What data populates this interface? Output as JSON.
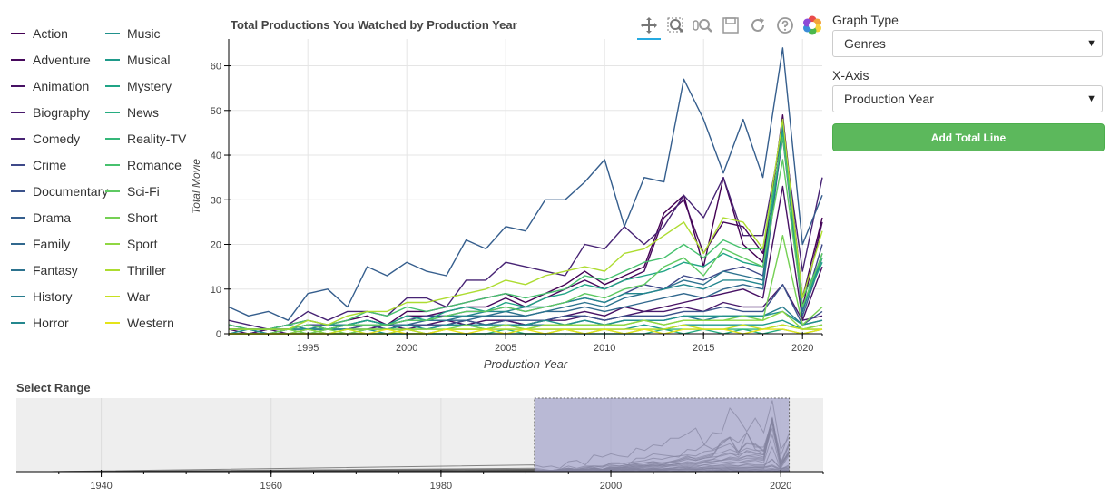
{
  "legend": [
    "Action",
    "Adventure",
    "Animation",
    "Biography",
    "Comedy",
    "Crime",
    "Documentary",
    "Drama",
    "Family",
    "Fantasy",
    "History",
    "Horror",
    "Music",
    "Musical",
    "Mystery",
    "News",
    "Reality-TV",
    "Romance",
    "Sci-Fi",
    "Short",
    "Sport",
    "Thriller",
    "War",
    "Western"
  ],
  "colors": {
    "Action": "#440154",
    "Adventure": "#46085c",
    "Animation": "#471164",
    "Biography": "#481a6c",
    "Comedy": "#472374",
    "Crime": "#3e4989",
    "Documentary": "#3b528b",
    "Drama": "#355e8d",
    "Family": "#31688e",
    "Fantasy": "#2c728e",
    "History": "#287c8e",
    "Horror": "#24878e",
    "Music": "#21918c",
    "Musical": "#1f9a8a",
    "Mystery": "#20a486",
    "News": "#27ad81",
    "Reality-TV": "#35b779",
    "Romance": "#47c16e",
    "Sci-Fi": "#5ec962",
    "Short": "#75d054",
    "Sport": "#90d743",
    "Thriller": "#addc30",
    "War": "#c8e020",
    "Western": "#e5e419"
  },
  "toolbar": {
    "tools": [
      "pan-icon",
      "box-zoom-icon",
      "wheel-zoom-icon",
      "save-icon",
      "reset-icon",
      "help-icon",
      "bokeh-logo-icon"
    ]
  },
  "controls": {
    "graph_type_label": "Graph Type",
    "graph_type_value": "Genres",
    "x_axis_label": "X-Axis",
    "x_axis_value": "Production Year",
    "add_total_label": "Add Total Line"
  },
  "range_panel": {
    "title": "Select Range",
    "xticks": [
      1940,
      1960,
      1980,
      2000,
      2020
    ],
    "xlim": [
      1930,
      2025
    ],
    "ylim": [
      0,
      66
    ],
    "selection": [
      1991,
      2021
    ]
  },
  "chart_data": {
    "type": "line",
    "title": "Total Productions You Watched by Production Year",
    "xlabel": "Production Year",
    "ylabel": "Total Movie",
    "xlim": [
      1991,
      2021
    ],
    "ylim": [
      0,
      66
    ],
    "xticks": [
      1995,
      2000,
      2005,
      2010,
      2015,
      2020
    ],
    "yticks": [
      0,
      10,
      20,
      30,
      40,
      50,
      60
    ],
    "grid": true,
    "x": [
      1991,
      1992,
      1993,
      1994,
      1995,
      1996,
      1997,
      1998,
      1999,
      2000,
      2001,
      2002,
      2003,
      2004,
      2005,
      2006,
      2007,
      2008,
      2009,
      2010,
      2011,
      2012,
      2013,
      2014,
      2015,
      2016,
      2017,
      2018,
      2019,
      2020,
      2021
    ],
    "series": [
      {
        "name": "Action",
        "values": [
          2,
          1,
          1,
          2,
          3,
          2,
          3,
          4,
          2,
          5,
          5,
          6,
          7,
          8,
          9,
          7,
          9,
          11,
          14,
          11,
          13,
          15,
          27,
          31,
          15,
          35,
          20,
          16,
          49,
          8,
          26
        ]
      },
      {
        "name": "Adventure",
        "values": [
          1,
          1,
          1,
          1,
          2,
          1,
          2,
          3,
          2,
          4,
          4,
          5,
          6,
          6,
          8,
          6,
          8,
          10,
          12,
          10,
          12,
          14,
          26,
          30,
          18,
          25,
          24,
          18,
          48,
          6,
          25
        ]
      },
      {
        "name": "Animation",
        "values": [
          1,
          0,
          1,
          1,
          1,
          1,
          1,
          2,
          1,
          2,
          2,
          3,
          2,
          3,
          3,
          2,
          3,
          4,
          5,
          4,
          6,
          5,
          6,
          7,
          8,
          9,
          10,
          8,
          33,
          3,
          15
        ]
      },
      {
        "name": "Biography",
        "values": [
          0,
          0,
          1,
          0,
          1,
          1,
          1,
          1,
          2,
          1,
          2,
          2,
          3,
          2,
          3,
          2,
          3,
          3,
          4,
          3,
          4,
          5,
          5,
          6,
          5,
          7,
          6,
          6,
          11,
          3,
          4
        ]
      },
      {
        "name": "Comedy",
        "values": [
          3,
          2,
          1,
          2,
          5,
          3,
          5,
          5,
          4,
          8,
          8,
          6,
          12,
          12,
          16,
          15,
          14,
          13,
          20,
          19,
          24,
          20,
          24,
          31,
          26,
          35,
          22,
          22,
          46,
          14,
          35
        ]
      },
      {
        "name": "Crime",
        "values": [
          1,
          1,
          1,
          1,
          2,
          2,
          2,
          3,
          2,
          3,
          4,
          4,
          5,
          5,
          6,
          5,
          6,
          7,
          8,
          7,
          9,
          11,
          10,
          13,
          12,
          14,
          15,
          13,
          44,
          5,
          20
        ]
      },
      {
        "name": "Documentary",
        "values": [
          1,
          1,
          0,
          1,
          1,
          1,
          1,
          2,
          1,
          2,
          2,
          2,
          3,
          2,
          3,
          3,
          3,
          4,
          4,
          3,
          4,
          4,
          4,
          5,
          5,
          6,
          5,
          5,
          11,
          2,
          5
        ]
      },
      {
        "name": "Drama",
        "values": [
          6,
          4,
          5,
          3,
          9,
          10,
          6,
          15,
          13,
          16,
          14,
          13,
          21,
          19,
          24,
          23,
          30,
          30,
          34,
          39,
          24,
          35,
          34,
          57,
          48,
          36,
          48,
          35,
          64,
          20,
          31
        ]
      },
      {
        "name": "Family",
        "values": [
          1,
          1,
          1,
          1,
          1,
          1,
          2,
          2,
          2,
          2,
          3,
          3,
          3,
          4,
          4,
          4,
          5,
          5,
          6,
          5,
          6,
          7,
          8,
          9,
          8,
          10,
          11,
          10,
          45,
          4,
          17
        ]
      },
      {
        "name": "Fantasy",
        "values": [
          1,
          1,
          1,
          1,
          2,
          1,
          2,
          2,
          2,
          3,
          3,
          3,
          4,
          4,
          5,
          4,
          5,
          6,
          7,
          6,
          8,
          9,
          10,
          12,
          11,
          14,
          13,
          12,
          46,
          5,
          18
        ]
      },
      {
        "name": "History",
        "values": [
          0,
          0,
          0,
          1,
          0,
          1,
          1,
          1,
          1,
          1,
          1,
          2,
          2,
          1,
          2,
          2,
          2,
          2,
          3,
          2,
          3,
          3,
          3,
          4,
          3,
          4,
          4,
          4,
          6,
          2,
          3
        ]
      },
      {
        "name": "Horror",
        "values": [
          1,
          1,
          1,
          2,
          1,
          2,
          2,
          3,
          2,
          3,
          3,
          4,
          4,
          5,
          5,
          6,
          6,
          7,
          8,
          7,
          9,
          9,
          10,
          11,
          10,
          12,
          12,
          11,
          47,
          6,
          17
        ]
      },
      {
        "name": "Music",
        "values": [
          0,
          1,
          0,
          1,
          1,
          1,
          1,
          1,
          1,
          2,
          1,
          2,
          2,
          2,
          2,
          2,
          3,
          2,
          3,
          2,
          3,
          3,
          3,
          4,
          4,
          4,
          4,
          4,
          5,
          2,
          3
        ]
      },
      {
        "name": "Musical",
        "values": [
          0,
          0,
          0,
          0,
          1,
          0,
          0,
          1,
          0,
          1,
          0,
          1,
          1,
          1,
          1,
          1,
          1,
          1,
          1,
          1,
          1,
          2,
          1,
          2,
          2,
          2,
          2,
          2,
          3,
          1,
          2
        ]
      },
      {
        "name": "Mystery",
        "values": [
          1,
          1,
          1,
          1,
          2,
          1,
          2,
          3,
          2,
          4,
          3,
          5,
          6,
          5,
          7,
          6,
          8,
          9,
          11,
          10,
          12,
          13,
          14,
          16,
          15,
          18,
          16,
          15,
          45,
          6,
          16
        ]
      },
      {
        "name": "News",
        "values": [
          0,
          0,
          0,
          0,
          0,
          0,
          0,
          0,
          0,
          0,
          0,
          0,
          0,
          0,
          0,
          0,
          0,
          0,
          0,
          0,
          0,
          0,
          1,
          0,
          1,
          0,
          1,
          0,
          1,
          0,
          1
        ]
      },
      {
        "name": "Reality-TV",
        "values": [
          0,
          0,
          0,
          0,
          0,
          0,
          0,
          0,
          0,
          0,
          0,
          0,
          0,
          0,
          1,
          0,
          0,
          1,
          0,
          1,
          0,
          1,
          1,
          1,
          1,
          1,
          1,
          1,
          2,
          1,
          1
        ]
      },
      {
        "name": "Romance",
        "values": [
          2,
          1,
          1,
          2,
          3,
          2,
          3,
          5,
          4,
          6,
          5,
          6,
          7,
          8,
          9,
          8,
          9,
          10,
          13,
          12,
          14,
          16,
          17,
          20,
          17,
          21,
          19,
          19,
          44,
          8,
          17
        ]
      },
      {
        "name": "Sci-Fi",
        "values": [
          1,
          1,
          1,
          1,
          2,
          1,
          2,
          2,
          2,
          3,
          3,
          4,
          5,
          5,
          6,
          5,
          6,
          7,
          9,
          8,
          10,
          11,
          15,
          17,
          13,
          19,
          17,
          15,
          39,
          6,
          18
        ]
      },
      {
        "name": "Short",
        "values": [
          0,
          0,
          0,
          1,
          0,
          1,
          0,
          1,
          1,
          1,
          1,
          1,
          2,
          1,
          2,
          1,
          2,
          2,
          2,
          2,
          2,
          3,
          2,
          3,
          3,
          3,
          4,
          3,
          22,
          2,
          6
        ]
      },
      {
        "name": "Sport",
        "values": [
          0,
          0,
          0,
          0,
          1,
          0,
          1,
          1,
          1,
          1,
          1,
          1,
          1,
          1,
          2,
          1,
          2,
          2,
          2,
          2,
          2,
          3,
          2,
          3,
          3,
          3,
          3,
          3,
          5,
          1,
          2
        ]
      },
      {
        "name": "Thriller",
        "values": [
          1,
          1,
          1,
          1,
          3,
          2,
          4,
          5,
          5,
          7,
          7,
          8,
          9,
          10,
          12,
          11,
          13,
          14,
          15,
          14,
          18,
          19,
          22,
          25,
          18,
          26,
          25,
          19,
          48,
          8,
          23
        ]
      },
      {
        "name": "War",
        "values": [
          0,
          0,
          0,
          0,
          0,
          0,
          1,
          0,
          0,
          1,
          0,
          1,
          1,
          1,
          1,
          1,
          1,
          1,
          1,
          1,
          1,
          1,
          1,
          2,
          1,
          1,
          2,
          1,
          2,
          1,
          1
        ]
      },
      {
        "name": "Western",
        "values": [
          0,
          0,
          0,
          0,
          0,
          0,
          0,
          0,
          1,
          0,
          0,
          1,
          0,
          1,
          0,
          1,
          0,
          1,
          0,
          1,
          0,
          1,
          0,
          1,
          1,
          1,
          0,
          1,
          1,
          0,
          1
        ]
      }
    ]
  }
}
